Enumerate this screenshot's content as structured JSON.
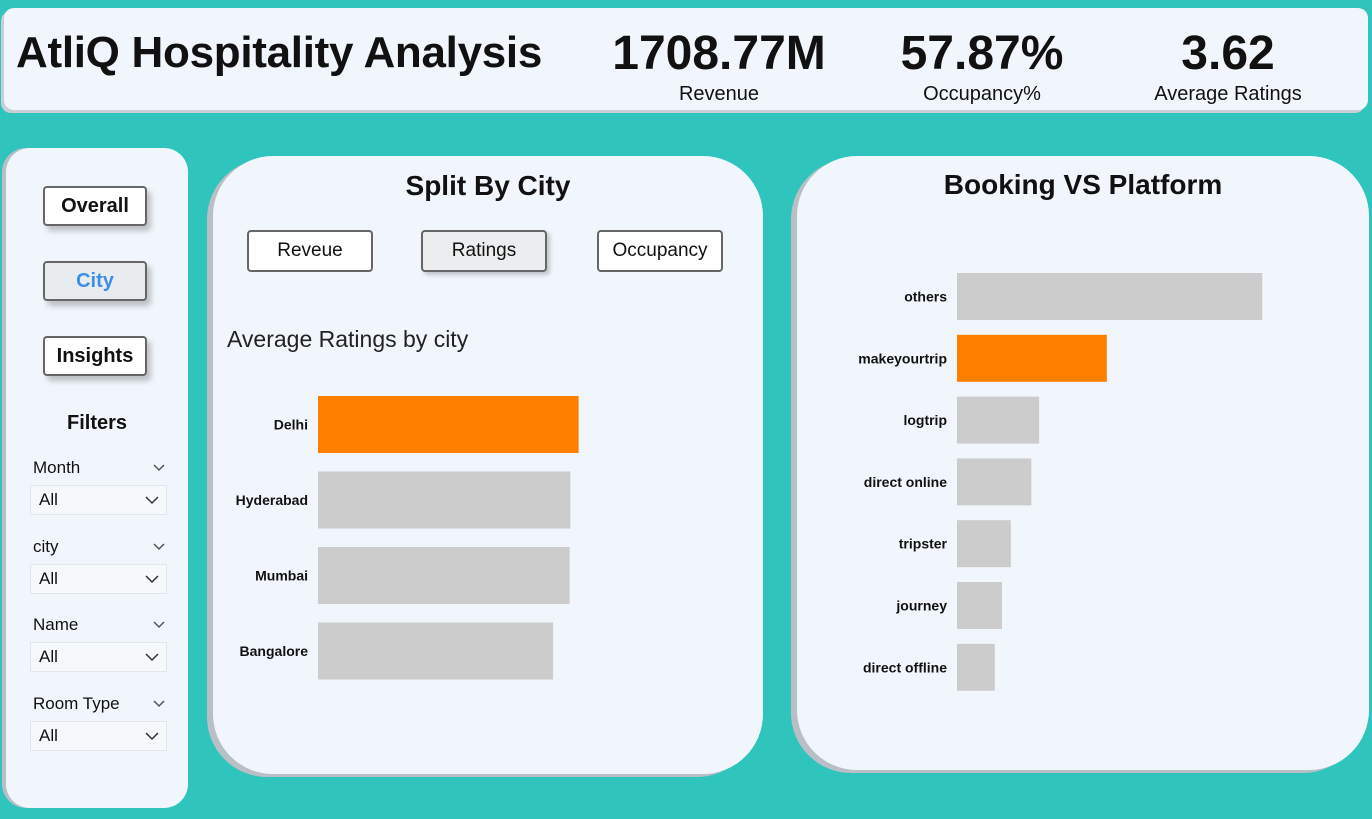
{
  "header": {
    "title": "AtliQ Hospitality Analysis",
    "kpis": [
      {
        "value": "1708.77M",
        "label": "Revenue"
      },
      {
        "value": "57.87%",
        "label": "Occupancy%"
      },
      {
        "value": "3.62",
        "label": "Average Ratings"
      }
    ]
  },
  "sidebar": {
    "nav": {
      "overall": "Overall",
      "city": "City",
      "insights": "Insights"
    },
    "filters_title": "Filters",
    "filters": [
      {
        "label": "Month",
        "value": "All"
      },
      {
        "label": "city",
        "value": "All"
      },
      {
        "label": "Name",
        "value": "All"
      },
      {
        "label": "Room Type",
        "value": "All"
      }
    ]
  },
  "city_panel": {
    "title": "Split By City",
    "tabs": {
      "revenue": "Reveue",
      "ratings": "Ratings",
      "occupancy": "Occupancy"
    },
    "subtitle": "Average Ratings by city"
  },
  "platform_panel": {
    "title": "Booking VS Platform"
  },
  "colors": {
    "accent": "#ff7f00",
    "bar": "#cccccc",
    "background": "#2fc4bc"
  },
  "chart_data": [
    {
      "type": "bar",
      "orientation": "horizontal",
      "title": "Average Ratings by city",
      "categories": [
        "Delhi",
        "Hyderabad",
        "Mumbai",
        "Bangalore"
      ],
      "values": [
        3.78,
        3.66,
        3.65,
        3.41
      ],
      "highlight": "Delhi",
      "xlim": [
        0,
        3.8
      ]
    },
    {
      "type": "bar",
      "orientation": "horizontal",
      "title": "Booking VS Platform",
      "categories": [
        "others",
        "makeyourtrip",
        "logtrip",
        "direct online",
        "tripster",
        "journey",
        "direct offline"
      ],
      "values": [
        55000,
        27000,
        14800,
        13400,
        9700,
        8100,
        6800
      ],
      "highlight": "makeyourtrip",
      "xlim": [
        0,
        60000
      ]
    }
  ]
}
